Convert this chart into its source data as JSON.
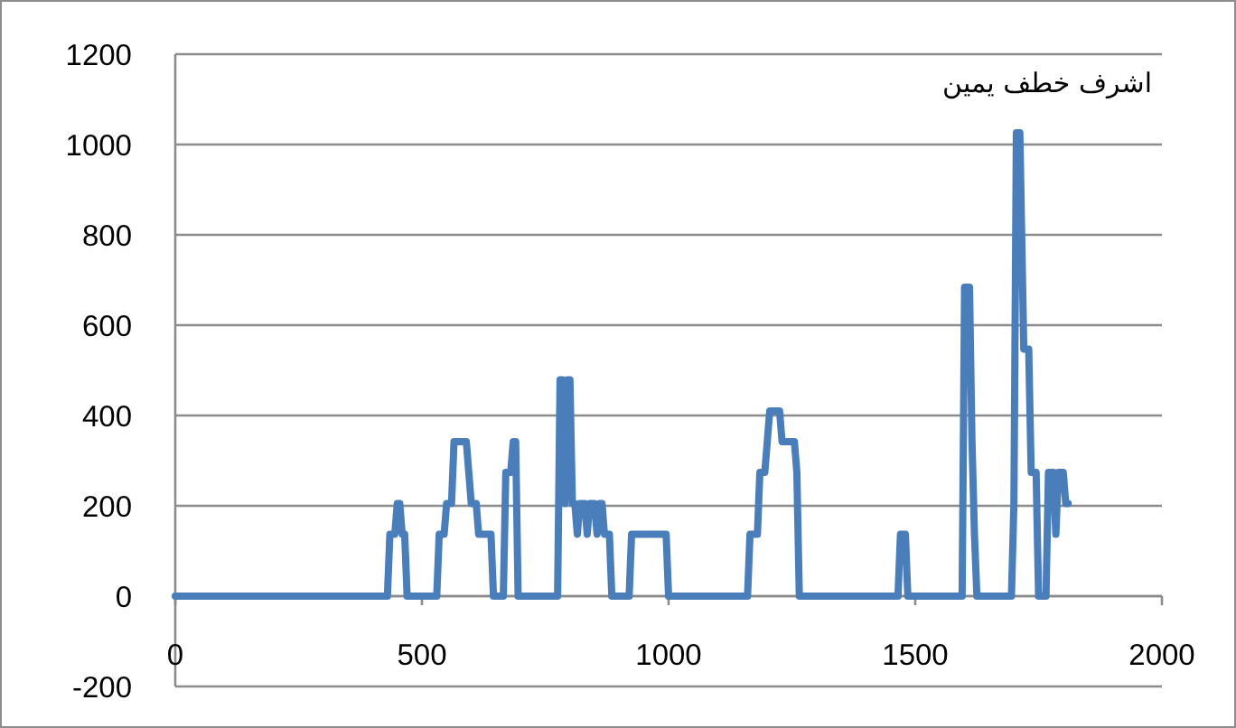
{
  "chart_data": {
    "type": "line",
    "title": "اشرف خطف يمين",
    "color": "#4a7ebb",
    "grid": "y",
    "xlim": [
      0,
      2000
    ],
    "ylim": [
      -200,
      1200
    ],
    "xticks": [
      0,
      500,
      1000,
      1500,
      2000
    ],
    "yticks": [
      -200,
      0,
      200,
      400,
      600,
      800,
      1000,
      1200
    ],
    "x": [
      0,
      430,
      435,
      445,
      450,
      455,
      460,
      465,
      470,
      530,
      535,
      545,
      550,
      560,
      565,
      590,
      600,
      610,
      615,
      640,
      645,
      665,
      670,
      680,
      685,
      690,
      695,
      775,
      780,
      785,
      790,
      795,
      800,
      805,
      810,
      815,
      820,
      830,
      835,
      840,
      850,
      855,
      860,
      865,
      870,
      880,
      885,
      920,
      925,
      995,
      1000,
      1160,
      1165,
      1180,
      1185,
      1195,
      1200,
      1205,
      1225,
      1230,
      1255,
      1260,
      1265,
      1465,
      1470,
      1480,
      1485,
      1595,
      1600,
      1610,
      1615,
      1620,
      1625,
      1695,
      1700,
      1705,
      1712,
      1720,
      1730,
      1735,
      1745,
      1750,
      1765,
      1770,
      1780,
      1785,
      1790,
      1800,
      1805,
      1810
    ],
    "values": [
      0,
      0,
      137,
      137,
      205,
      205,
      137,
      137,
      0,
      0,
      137,
      137,
      205,
      205,
      342,
      342,
      205,
      205,
      137,
      137,
      0,
      0,
      274,
      274,
      342,
      342,
      0,
      0,
      479,
      479,
      205,
      479,
      479,
      205,
      205,
      137,
      205,
      205,
      137,
      205,
      205,
      137,
      205,
      205,
      137,
      137,
      0,
      0,
      137,
      137,
      0,
      0,
      137,
      137,
      274,
      274,
      342,
      410,
      410,
      342,
      342,
      274,
      0,
      0,
      137,
      137,
      0,
      0,
      684,
      684,
      342,
      137,
      0,
      0,
      205,
      1026,
      1026,
      547,
      547,
      274,
      274,
      0,
      0,
      274,
      274,
      137,
      274,
      274,
      205,
      205
    ]
  }
}
